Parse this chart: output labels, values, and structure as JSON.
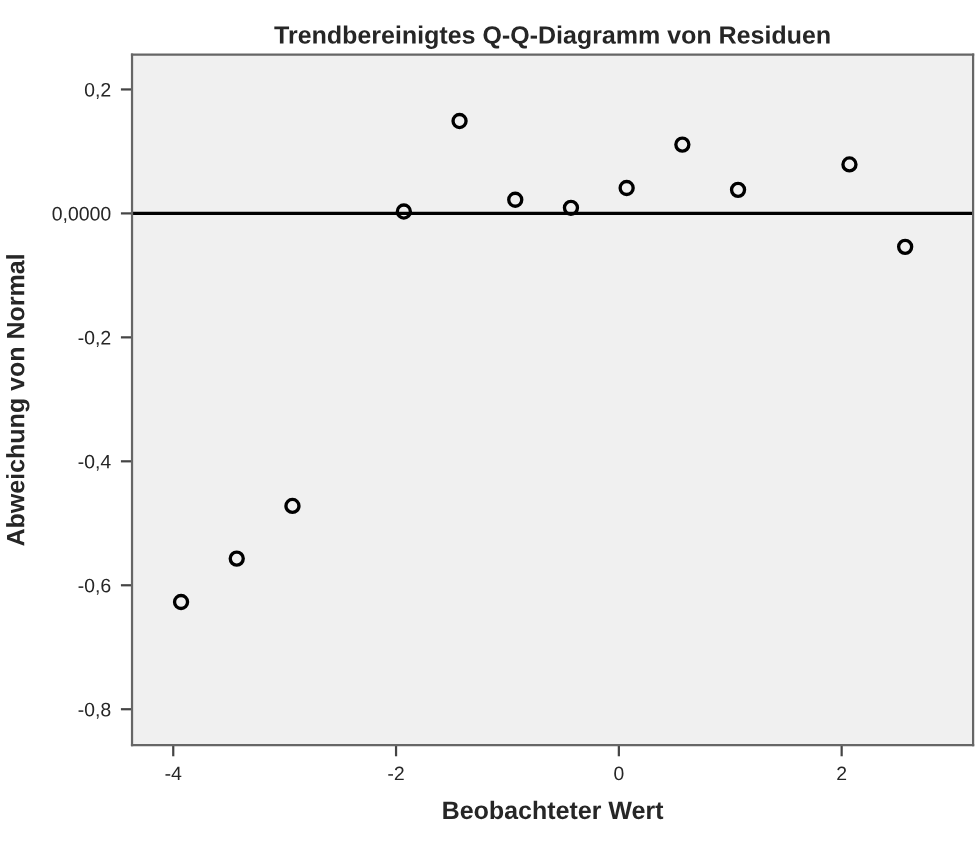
{
  "chart_data": {
    "type": "scatter",
    "title": "Trendbereinigtes Q-Q-Diagramm von Residuen",
    "xlabel": "Beobachteter Wert",
    "ylabel": "Abweichung von Normal",
    "x": [
      -3.93,
      -3.43,
      -2.93,
      -1.93,
      -1.43,
      -0.93,
      -0.43,
      0.07,
      0.57,
      1.07,
      2.07,
      2.57
    ],
    "series": [
      {
        "color": "#000000",
        "values": [
          -0.627,
          -0.557,
          -0.472,
          0.003,
          0.149,
          0.022,
          0.009,
          0.041,
          0.111,
          0.038,
          0.079,
          -0.054
        ]
      }
    ],
    "xlim": [
      -4.37,
      3.18
    ],
    "ylim": [
      -0.858,
      0.256
    ],
    "xticks": [
      {
        "value": -4,
        "label": "-4"
      },
      {
        "value": -2,
        "label": "-2"
      },
      {
        "value": 0,
        "label": "0"
      },
      {
        "value": 2,
        "label": "2"
      }
    ],
    "yticks": [
      {
        "value": -0.8,
        "label": "-0,8"
      },
      {
        "value": -0.6,
        "label": "-0,6"
      },
      {
        "value": -0.4,
        "label": "-0,4"
      },
      {
        "value": -0.2,
        "label": "-0,2"
      },
      {
        "value": 0,
        "label": "0,0000"
      },
      {
        "value": 0.2,
        "label": "0,2"
      }
    ],
    "ref_lines": [
      {
        "axis": "y",
        "value": 0,
        "label": null,
        "color": "#000000"
      }
    ],
    "marker": "circle",
    "grid": false,
    "legend": false
  }
}
